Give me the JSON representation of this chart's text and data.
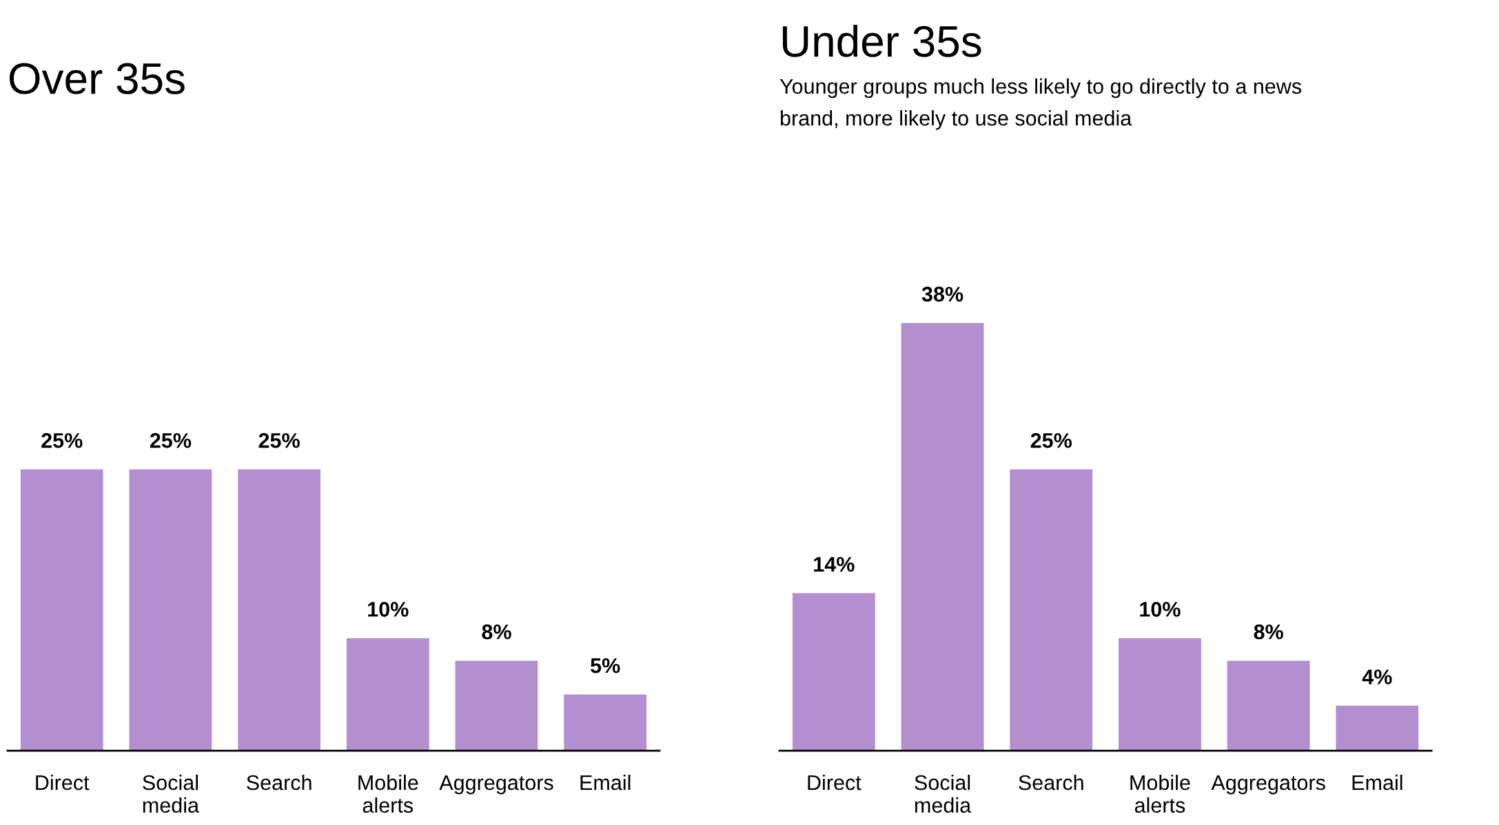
{
  "chart_data": [
    {
      "type": "bar",
      "title": "Over 35s",
      "categories": [
        "Direct",
        "Social\nmedia",
        "Search",
        "Mobile\nalerts",
        "Aggregators",
        "Email"
      ],
      "values": [
        25,
        25,
        25,
        10,
        8,
        5
      ],
      "value_labels": [
        "25%",
        "25%",
        "25%",
        "10%",
        "8%",
        "5%"
      ],
      "color": "#b38fd0",
      "tick_labels": "x"
    },
    {
      "type": "bar",
      "title": "Under 35s",
      "subtitle": "Younger groups much less likely to go directly to a news\nbrand, more likely to use social media",
      "categories": [
        "Direct",
        "Social\nmedia",
        "Search",
        "Mobile\nalerts",
        "Aggregators",
        "Email"
      ],
      "values": [
        14,
        38,
        25,
        10,
        8,
        4
      ],
      "value_labels": [
        "14%",
        "38%",
        "25%",
        "10%",
        "8%",
        "4%"
      ],
      "color": "#b38fd0",
      "tick_labels": "x"
    }
  ]
}
